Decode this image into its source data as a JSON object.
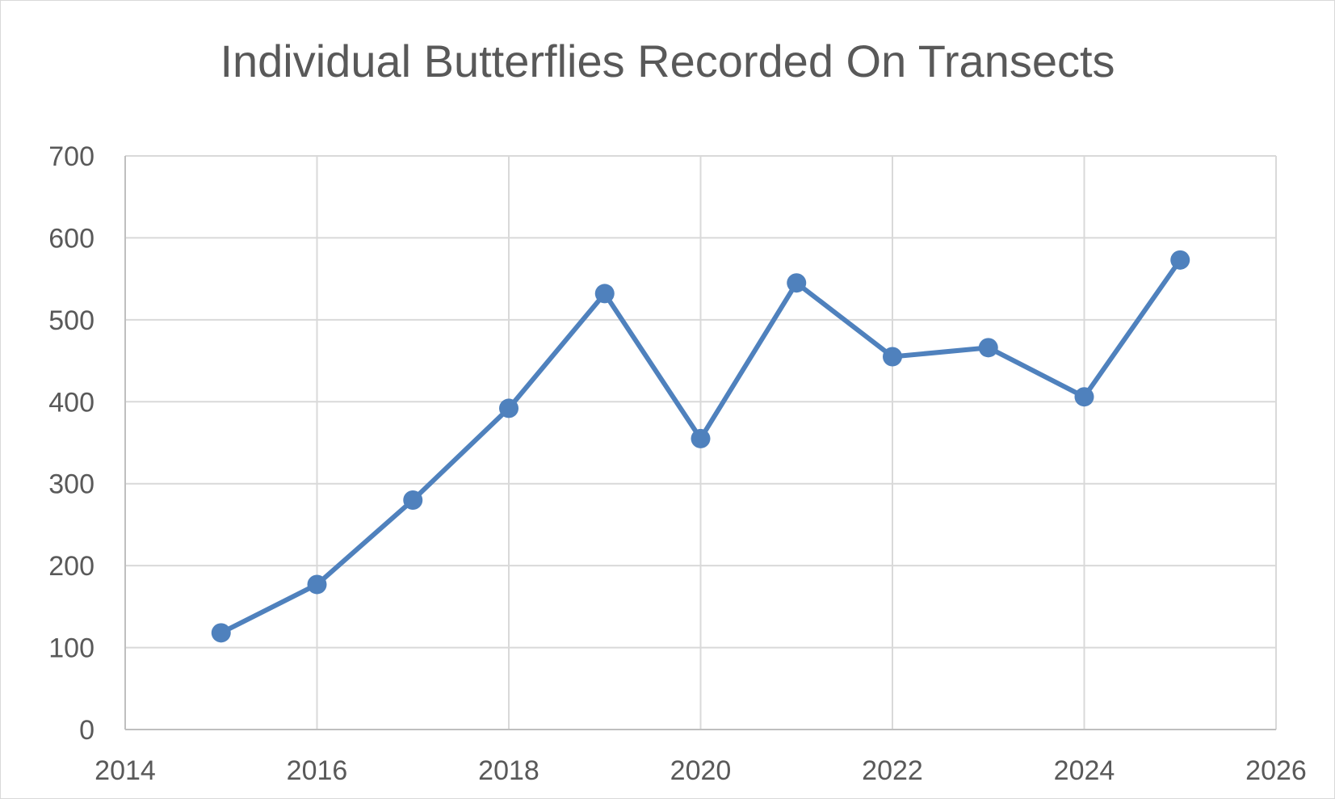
{
  "chart_data": {
    "type": "scatter",
    "title": "Individual Butterflies Recorded On Transects",
    "xlabel": "",
    "ylabel": "",
    "xlim": [
      2014,
      2026
    ],
    "ylim": [
      0,
      700
    ],
    "x_ticks": [
      2014,
      2016,
      2018,
      2020,
      2022,
      2024,
      2026
    ],
    "y_ticks": [
      0,
      100,
      200,
      300,
      400,
      500,
      600,
      700
    ],
    "grid": true,
    "legend": "none",
    "series": [
      {
        "color": "#4f81bd",
        "x": [
          2015,
          2016,
          2017,
          2018,
          2019,
          2020,
          2021,
          2022,
          2023,
          2024,
          2025
        ],
        "y": [
          118,
          177,
          280,
          392,
          532,
          355,
          545,
          455,
          466,
          406,
          573
        ]
      }
    ]
  }
}
